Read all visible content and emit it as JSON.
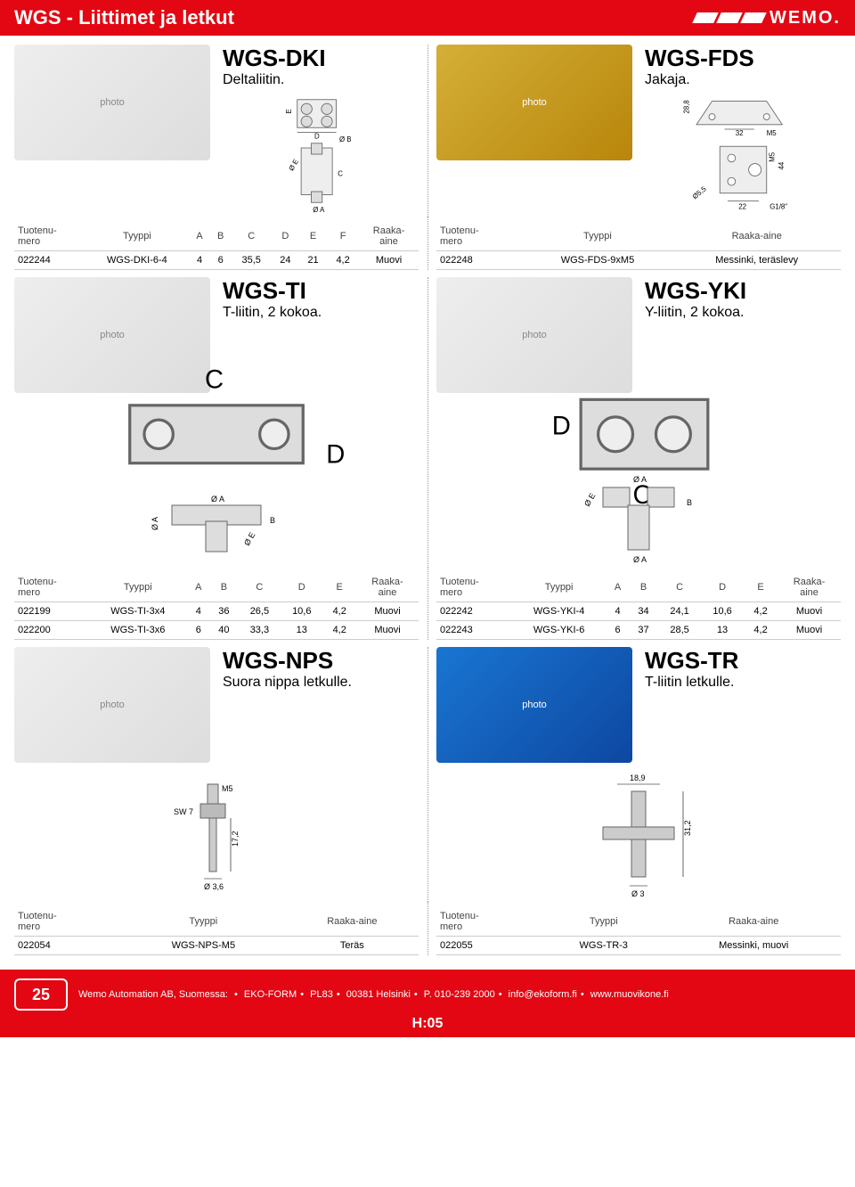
{
  "header": {
    "title": "WGS - Liittimet ja letkut",
    "brand": "WEMO."
  },
  "products": {
    "dki": {
      "name": "WGS-DKI",
      "desc": "Deltaliitin.",
      "table": {
        "columns": [
          "Tuotenumero",
          "Tyyppi",
          "A",
          "B",
          "C",
          "D",
          "E",
          "F",
          "Raaka-aine"
        ],
        "rows": [
          [
            "022244",
            "WGS-DKI-6-4",
            "4",
            "6",
            "35,5",
            "24",
            "21",
            "4,2",
            "Muovi"
          ]
        ]
      }
    },
    "fds": {
      "name": "WGS-FDS",
      "desc": "Jakaja.",
      "dims": {
        "h": "28,8",
        "w1": "32",
        "thread1": "M5",
        "thread2": "M5",
        "h2": "44",
        "dia": "Ø5,5",
        "w2": "22",
        "thread3": "G1/8\""
      },
      "table": {
        "columns": [
          "Tuotenumero",
          "Tyyppi",
          "Raaka-aine"
        ],
        "rows": [
          [
            "022248",
            "WGS-FDS-9xM5",
            "Messinki, teräslevy"
          ]
        ]
      }
    },
    "ti": {
      "name": "WGS-TI",
      "desc": "T-liitin, 2 kokoa.",
      "table": {
        "columns": [
          "Tuotenumero",
          "Tyyppi",
          "A",
          "B",
          "C",
          "D",
          "E",
          "Raaka-aine"
        ],
        "rows": [
          [
            "022199",
            "WGS-TI-3x4",
            "4",
            "36",
            "26,5",
            "10,6",
            "4,2",
            "Muovi"
          ],
          [
            "022200",
            "WGS-TI-3x6",
            "6",
            "40",
            "33,3",
            "13",
            "4,2",
            "Muovi"
          ]
        ]
      }
    },
    "yki": {
      "name": "WGS-YKI",
      "desc": "Y-liitin, 2 kokoa.",
      "table": {
        "columns": [
          "Tuotenumero",
          "Tyyppi",
          "A",
          "B",
          "C",
          "D",
          "E",
          "Raaka-aine"
        ],
        "rows": [
          [
            "022242",
            "WGS-YKI-4",
            "4",
            "34",
            "24,1",
            "10,6",
            "4,2",
            "Muovi"
          ],
          [
            "022243",
            "WGS-YKI-6",
            "6",
            "37",
            "28,5",
            "13",
            "4,2",
            "Muovi"
          ]
        ]
      }
    },
    "nps": {
      "name": "WGS-NPS",
      "desc": "Suora nippa letkulle.",
      "dims": {
        "thread": "M5",
        "sw": "SW 7",
        "len": "17,2",
        "dia": "Ø 3,6"
      },
      "table": {
        "columns": [
          "Tuotenumero",
          "Tyyppi",
          "Raaka-aine"
        ],
        "rows": [
          [
            "022054",
            "WGS-NPS-M5",
            "Teräs"
          ]
        ]
      }
    },
    "tr": {
      "name": "WGS-TR",
      "desc": "T-liitin letkulle.",
      "dims": {
        "w": "18,9",
        "h": "31,2",
        "dia": "Ø 3"
      },
      "table": {
        "columns": [
          "Tuotenumero",
          "Tyyppi",
          "Raaka-aine"
        ],
        "rows": [
          [
            "022055",
            "WGS-TR-3",
            "Messinki, muovi"
          ]
        ]
      }
    }
  },
  "footer": {
    "badge": "25",
    "parts": [
      "Wemo Automation AB, Suomessa:",
      "EKO-FORM",
      "PL83",
      "00381 Helsinki",
      "P. 010-239 2000",
      "info@ekoform.fi",
      "www.muovikone.fi"
    ],
    "page": "H:05"
  },
  "colors": {
    "brand_red": "#e30613",
    "text": "#000000",
    "grid": "#cccccc",
    "bg": "#ffffff"
  }
}
